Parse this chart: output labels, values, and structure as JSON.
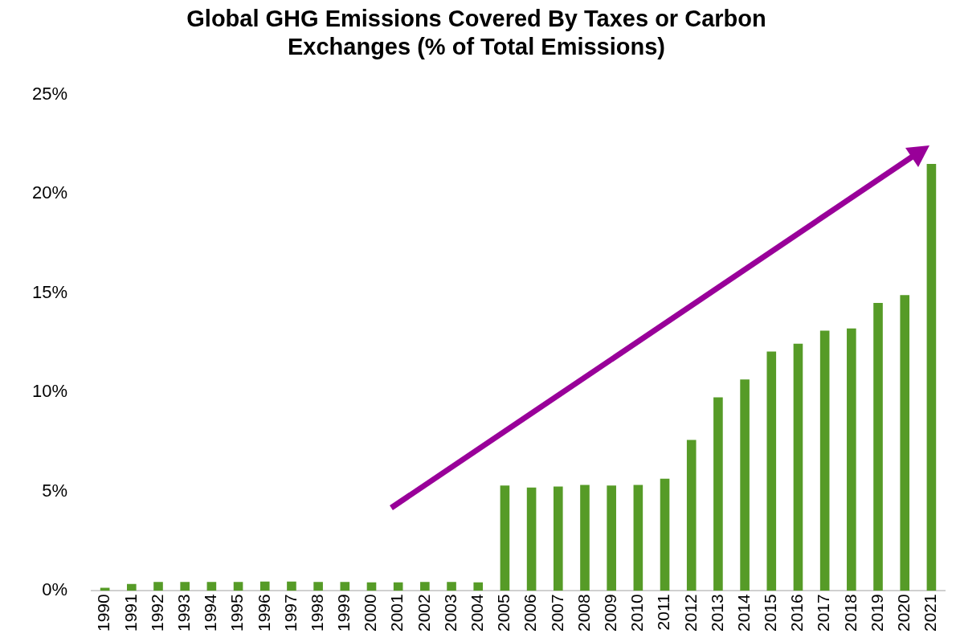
{
  "chart_data": {
    "type": "bar",
    "title": "Global GHG Emissions Covered By Taxes or Carbon\nExchanges (% of Total Emissions)",
    "categories": [
      "1990",
      "1991",
      "1992",
      "1993",
      "1994",
      "1995",
      "1996",
      "1997",
      "1998",
      "1999",
      "2000",
      "2001",
      "2002",
      "2003",
      "2004",
      "2005",
      "2006",
      "2007",
      "2008",
      "2009",
      "2010",
      "2011",
      "2012",
      "2013",
      "2014",
      "2015",
      "2016",
      "2017",
      "2018",
      "2019",
      "2020",
      "2021"
    ],
    "values": [
      0.15,
      0.35,
      0.45,
      0.45,
      0.45,
      0.45,
      0.47,
      0.47,
      0.45,
      0.45,
      0.43,
      0.43,
      0.45,
      0.45,
      0.43,
      5.3,
      5.2,
      5.25,
      5.33,
      5.3,
      5.33,
      5.65,
      7.6,
      9.75,
      10.65,
      12.05,
      12.45,
      13.1,
      13.22,
      14.5,
      14.9,
      21.5
    ],
    "color": "#569b27",
    "ylim": [
      0,
      25
    ],
    "yticks": [
      {
        "value": 0,
        "label": "0%"
      },
      {
        "value": 5,
        "label": "5%"
      },
      {
        "value": 10,
        "label": "10%"
      },
      {
        "value": 15,
        "label": "15%"
      },
      {
        "value": 20,
        "label": "20%"
      },
      {
        "value": 25,
        "label": "25%"
      }
    ],
    "grid": false,
    "legend": false
  }
}
